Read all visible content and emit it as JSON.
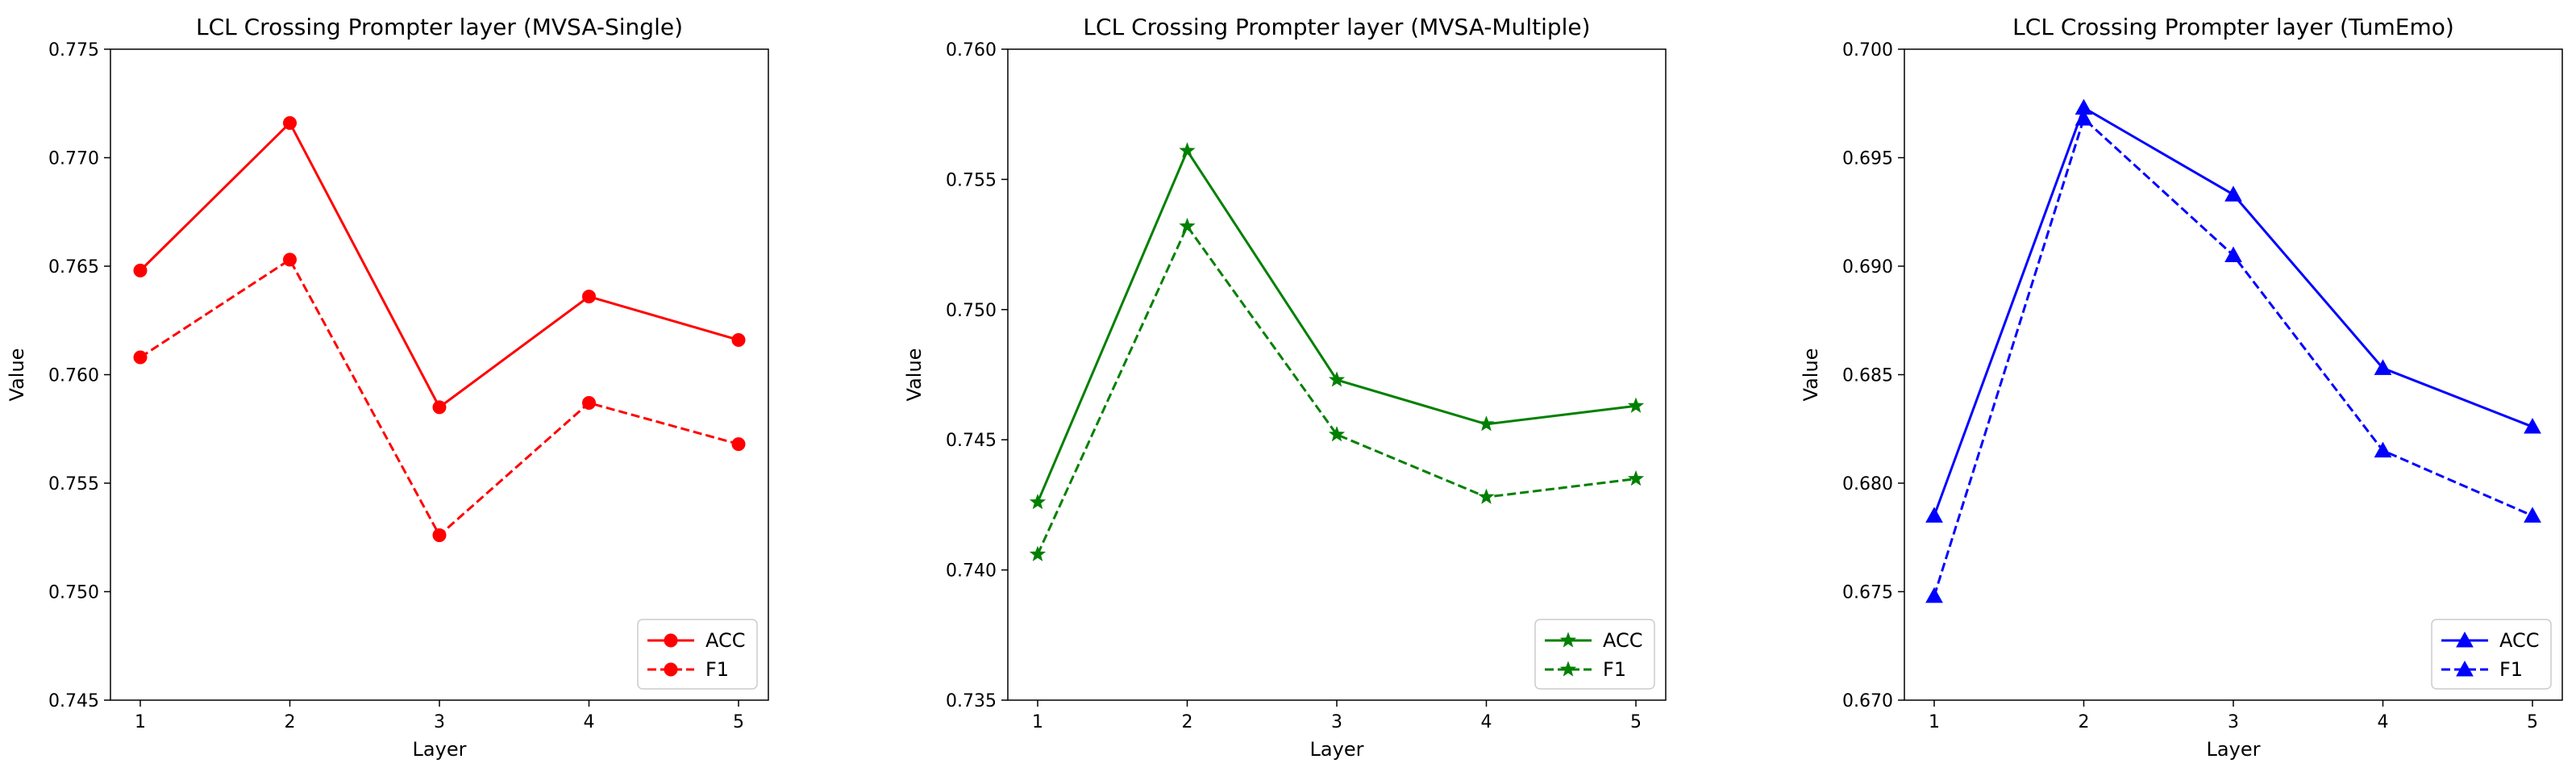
{
  "chart_data": [
    {
      "type": "line",
      "title": "LCL Crossing Prompter layer (MVSA-Single)",
      "xlabel": "Layer",
      "ylabel": "Value",
      "x": [
        1,
        2,
        3,
        4,
        5
      ],
      "x_tick_labels": [
        "1",
        "2",
        "3",
        "4",
        "5"
      ],
      "ylim": [
        0.745,
        0.775
      ],
      "y_ticks": [
        0.745,
        0.75,
        0.755,
        0.76,
        0.765,
        0.77,
        0.775
      ],
      "y_tick_labels": [
        "0.745",
        "0.750",
        "0.755",
        "0.760",
        "0.765",
        "0.770",
        "0.775"
      ],
      "color": "#ff0000",
      "marker": "circle",
      "legend_position": "lower-right",
      "series": [
        {
          "name": "ACC",
          "style": "solid",
          "values": [
            0.7648,
            0.7716,
            0.7585,
            0.7636,
            0.7616
          ]
        },
        {
          "name": "F1",
          "style": "dashed",
          "values": [
            0.7608,
            0.7653,
            0.7526,
            0.7587,
            0.7568
          ]
        }
      ]
    },
    {
      "type": "line",
      "title": "LCL Crossing Prompter layer (MVSA-Multiple)",
      "xlabel": "Layer",
      "ylabel": "Value",
      "x": [
        1,
        2,
        3,
        4,
        5
      ],
      "x_tick_labels": [
        "1",
        "2",
        "3",
        "4",
        "5"
      ],
      "ylim": [
        0.735,
        0.76
      ],
      "y_ticks": [
        0.735,
        0.74,
        0.745,
        0.75,
        0.755,
        0.76
      ],
      "y_tick_labels": [
        "0.735",
        "0.740",
        "0.745",
        "0.750",
        "0.755",
        "0.760"
      ],
      "color": "#008000",
      "marker": "star",
      "legend_position": "lower-right",
      "series": [
        {
          "name": "ACC",
          "style": "solid",
          "values": [
            0.7426,
            0.7561,
            0.7473,
            0.7456,
            0.7463
          ]
        },
        {
          "name": "F1",
          "style": "dashed",
          "values": [
            0.7406,
            0.7532,
            0.7452,
            0.7428,
            0.7435
          ]
        }
      ]
    },
    {
      "type": "line",
      "title": "LCL Crossing Prompter layer (TumEmo)",
      "xlabel": "Layer",
      "ylabel": "Value",
      "x": [
        1,
        2,
        3,
        4,
        5
      ],
      "x_tick_labels": [
        "1",
        "2",
        "3",
        "4",
        "5"
      ],
      "ylim": [
        0.67,
        0.7
      ],
      "y_ticks": [
        0.67,
        0.675,
        0.68,
        0.685,
        0.69,
        0.695,
        0.7
      ],
      "y_tick_labels": [
        "0.670",
        "0.675",
        "0.680",
        "0.685",
        "0.690",
        "0.695",
        "0.700"
      ],
      "color": "#0000ff",
      "marker": "triangle",
      "legend_position": "lower-right",
      "series": [
        {
          "name": "ACC",
          "style": "solid",
          "values": [
            0.6785,
            0.6973,
            0.6933,
            0.6853,
            0.6826
          ]
        },
        {
          "name": "F1",
          "style": "dashed",
          "values": [
            0.6748,
            0.6968,
            0.6905,
            0.6815,
            0.6785
          ]
        }
      ]
    }
  ]
}
